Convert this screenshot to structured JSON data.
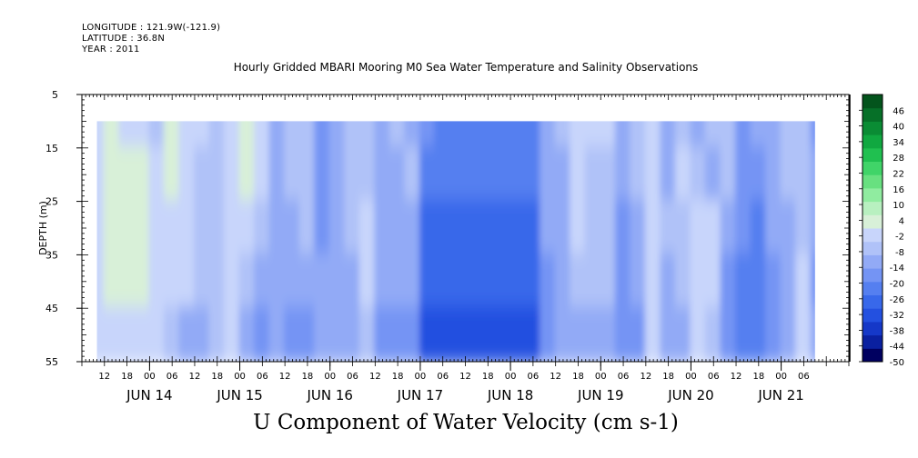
{
  "header": {
    "longitude": "LONGITUDE : 121.9W(-121.9)",
    "latitude": "LATITUDE : 36.8N",
    "year": "YEAR : 2011"
  },
  "chart_data": {
    "type": "heatmap",
    "title": "Hourly Gridded MBARI Mooring M0 Sea Water Temperature and Salinity Observations",
    "xlabel": "U Component of Water Velocity (cm s-1)",
    "ylabel": "DEPTH (m)",
    "yticks": [
      5,
      15,
      25,
      35,
      45,
      55
    ],
    "ylim": [
      5,
      55
    ],
    "y_inverted": true,
    "data_depth_range": [
      10,
      55
    ],
    "x_unit": "hours",
    "x_start": "JUN 13 06:00",
    "x_end": "JUN 21 12:00",
    "data_x_start": "JUN 13 16:00",
    "data_x_end": "JUN 21 11:00",
    "hour_tick_labels": [
      "12",
      "18",
      "00",
      "06",
      "12",
      "18",
      "00",
      "06",
      "12",
      "18",
      "00",
      "06",
      "12",
      "18",
      "00",
      "06",
      "12",
      "18",
      "00",
      "06",
      "12",
      "18",
      "00",
      "06",
      "12",
      "18",
      "00",
      "06",
      "12",
      "18",
      "00",
      "06"
    ],
    "day_labels": [
      {
        "label": "JUN 14",
        "hour": 24
      },
      {
        "label": "JUN 15",
        "hour": 48
      },
      {
        "label": "JUN 16",
        "hour": 72
      },
      {
        "label": "JUN 17",
        "hour": 96
      },
      {
        "label": "JUN 18",
        "hour": 120
      },
      {
        "label": "JUN 19",
        "hour": 144
      },
      {
        "label": "JUN 20",
        "hour": 168
      },
      {
        "label": "JUN 21",
        "hour": 192
      }
    ],
    "colorbar": {
      "labels": [
        "46",
        "40",
        "34",
        "28",
        "22",
        "16",
        "10",
        "4",
        "-2",
        "-8",
        "-14",
        "-20",
        "-26",
        "-32",
        "-38",
        "-44",
        "-50"
      ],
      "min": -50,
      "max": 52,
      "step": 6,
      "colors": [
        "#000060",
        "#0a20a0",
        "#1538c8",
        "#2350e0",
        "#3868ea",
        "#557ff0",
        "#7494f4",
        "#92aaf6",
        "#b0c2f8",
        "#c8d5fb",
        "#d8f0d8",
        "#b8f0c0",
        "#90eca0",
        "#68e080",
        "#40d468",
        "#20c050",
        "#10a840",
        "#0a8c34",
        "#067028",
        "#03541c"
      ]
    },
    "time_bins_hours": [
      10,
      14,
      18,
      22,
      26,
      30,
      34,
      38,
      42,
      46,
      50,
      54,
      58,
      62,
      66,
      70,
      74,
      78,
      82,
      86,
      90,
      94,
      98,
      102,
      106,
      110,
      114,
      118,
      122,
      126,
      130,
      134,
      138,
      142,
      146,
      150,
      154,
      158,
      162,
      166,
      170,
      174,
      178,
      182,
      186,
      190,
      194,
      198,
      202
    ],
    "depth_bins_m": [
      10,
      20,
      30,
      40,
      50
    ],
    "values_cm_s": [
      [
        4,
        10,
        8,
        9,
        0,
        12,
        8,
        4,
        1,
        4,
        12,
        4,
        -3,
        1,
        1,
        -14,
        -8,
        1,
        3,
        -4,
        0,
        -4,
        -12,
        -16,
        -16,
        -16,
        -16,
        -16,
        -16,
        -16,
        -4,
        -2,
        8,
        4,
        4,
        -6,
        -2,
        4,
        -4,
        2,
        -4,
        -2,
        1,
        -10,
        -6,
        -4,
        1,
        1,
        -12
      ],
      [
        4,
        10,
        12,
        12,
        4,
        10,
        6,
        2,
        1,
        4,
        10,
        4,
        -4,
        1,
        0,
        -12,
        -6,
        0,
        3,
        -8,
        -4,
        -2,
        -20,
        -20,
        -20,
        -20,
        -20,
        -20,
        -20,
        -20,
        -6,
        -4,
        6,
        2,
        2,
        -8,
        -2,
        4,
        -4,
        4,
        0,
        -4,
        -1,
        -12,
        -12,
        -6,
        -2,
        -2,
        -6
      ],
      [
        6,
        12,
        12,
        12,
        6,
        6,
        6,
        2,
        2,
        8,
        4,
        1,
        -6,
        -4,
        -2,
        -10,
        -6,
        1,
        6,
        -8,
        -8,
        -6,
        -24,
        -24,
        -24,
        -24,
        -24,
        -24,
        -24,
        -24,
        -8,
        -6,
        4,
        0,
        0,
        -10,
        -4,
        6,
        -2,
        2,
        6,
        6,
        -4,
        -14,
        -16,
        -6,
        -4,
        0,
        -4
      ],
      [
        8,
        10,
        10,
        10,
        6,
        4,
        4,
        0,
        2,
        8,
        1,
        -4,
        -6,
        -6,
        -6,
        -8,
        -4,
        -4,
        4,
        -8,
        -8,
        -8,
        -26,
        -26,
        -26,
        -26,
        -26,
        -26,
        -26,
        -26,
        -10,
        -6,
        2,
        -2,
        -2,
        -12,
        -6,
        6,
        -4,
        -2,
        8,
        6,
        -10,
        -16,
        -16,
        -10,
        -6,
        4,
        -10
      ],
      [
        6,
        8,
        8,
        6,
        4,
        2,
        -6,
        -8,
        2,
        6,
        -8,
        -10,
        -8,
        -10,
        -10,
        -6,
        -4,
        -8,
        2,
        -10,
        -10,
        -10,
        -28,
        -28,
        -28,
        -28,
        -28,
        -28,
        -28,
        -28,
        -12,
        -8,
        -4,
        -6,
        -8,
        -14,
        -12,
        4,
        -6,
        -8,
        6,
        2,
        -14,
        -20,
        -20,
        -12,
        -4,
        6,
        -4
      ]
    ]
  }
}
